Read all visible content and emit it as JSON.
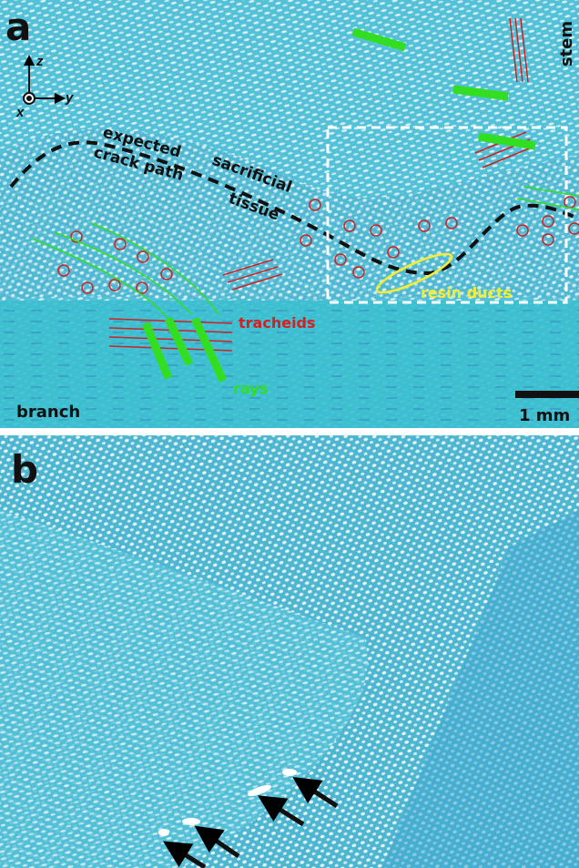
{
  "panel_a": {
    "label": "a",
    "stem": "stem",
    "branch": "branch",
    "axes": {
      "z": "z",
      "y": "y",
      "x": "x"
    },
    "crack_path": [
      "expected",
      "crack path"
    ],
    "sacrificial_tissue": [
      "sacrificial",
      "tissue"
    ],
    "resin_ducts": "resin ducts",
    "tracheids": "tracheids",
    "rays": "rays",
    "scale_bar": "1 mm"
  },
  "panel_b": {
    "label": "b"
  }
}
